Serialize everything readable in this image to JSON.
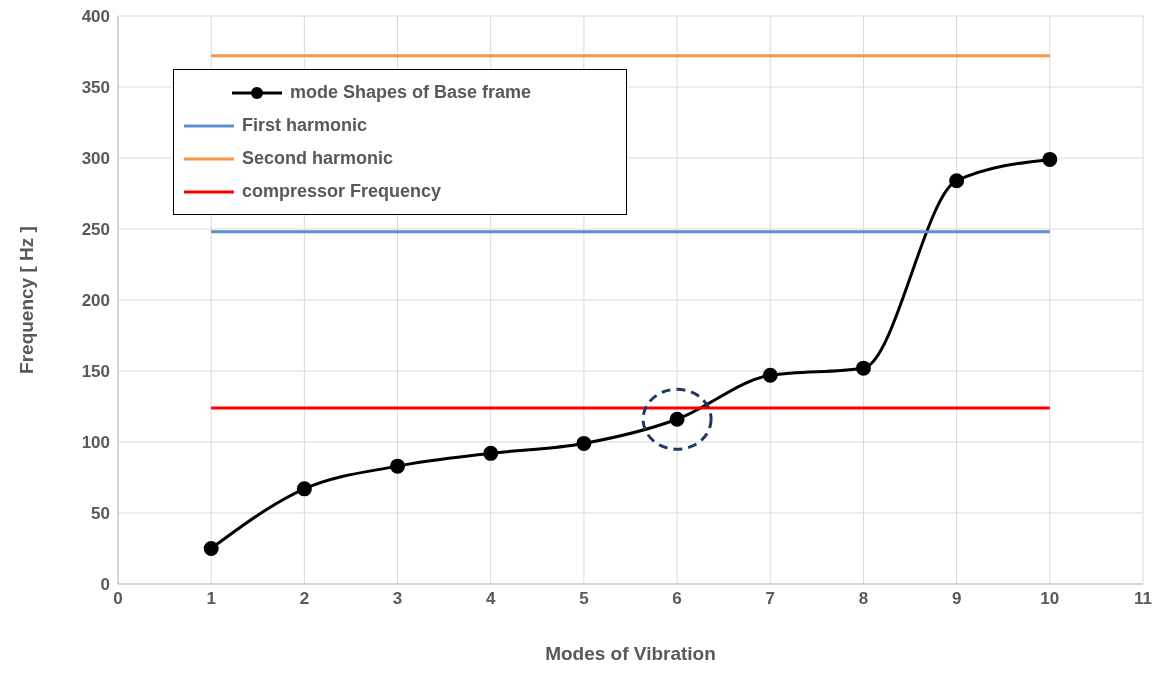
{
  "chart_data": {
    "type": "line",
    "xlabel": "Modes of Vibration",
    "ylabel": "Frequency [ Hz ]",
    "xlim": [
      0,
      11
    ],
    "xticks": [
      0,
      1,
      2,
      3,
      4,
      5,
      6,
      7,
      8,
      9,
      10,
      11
    ],
    "ylim": [
      0,
      400
    ],
    "yticks": [
      0,
      50,
      100,
      150,
      200,
      250,
      300,
      350,
      400
    ],
    "grid": true,
    "legend": "top left",
    "series": [
      {
        "name": "mode Shapes of Base frame",
        "color": "#000000",
        "marker": "circle",
        "x": [
          1,
          2,
          3,
          4,
          5,
          6,
          7,
          8,
          9,
          10
        ],
        "values": [
          25,
          67,
          83,
          92,
          99,
          116,
          147,
          152,
          284,
          299
        ]
      },
      {
        "name": "First harmonic",
        "color": "#5b8fd0",
        "marker": "none",
        "x": [
          1,
          10
        ],
        "values": [
          248,
          248
        ]
      },
      {
        "name": "Second harmonic",
        "color": "#f79646",
        "marker": "none",
        "x": [
          1,
          10
        ],
        "values": [
          372,
          372
        ]
      },
      {
        "name": "compressor Frequency",
        "color": "#ff0000",
        "marker": "none",
        "x": [
          1,
          10
        ],
        "values": [
          124,
          124
        ]
      }
    ]
  }
}
